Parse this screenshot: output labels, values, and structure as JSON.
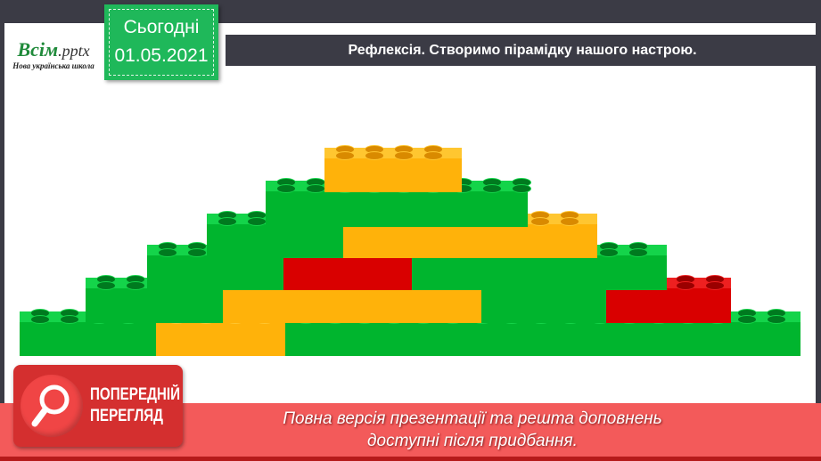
{
  "logo": {
    "brand": "Всім",
    "brand_ext": ".pptx",
    "tagline": "Нова українська школа"
  },
  "date_box": {
    "label": "Сьогодні",
    "date": "01.05.2021"
  },
  "slide_title": "Рефлексія. Створимо пірамідку нашого настрою.",
  "colors": {
    "green": "#00b52e",
    "orange": "#ffb20a",
    "red": "#d90000",
    "frame": "#3b3b45",
    "banner": "#f35a5a"
  },
  "pyramid": {
    "rows": [
      [
        "orange"
      ],
      [
        "green"
      ],
      [
        "green",
        "orange"
      ],
      [
        "green",
        "red",
        "green"
      ],
      [
        "green",
        "orange",
        "green",
        "red"
      ],
      [
        "green",
        "orange",
        "green"
      ]
    ]
  },
  "preview_badge": {
    "line1": "ПОПЕРЕДНІЙ",
    "line2": "ПЕРЕГЛЯД",
    "icon": "magnifier-icon"
  },
  "banner": {
    "line1": "Повна версія презентації та решта доповнень",
    "line2": "доступні після придбання."
  }
}
